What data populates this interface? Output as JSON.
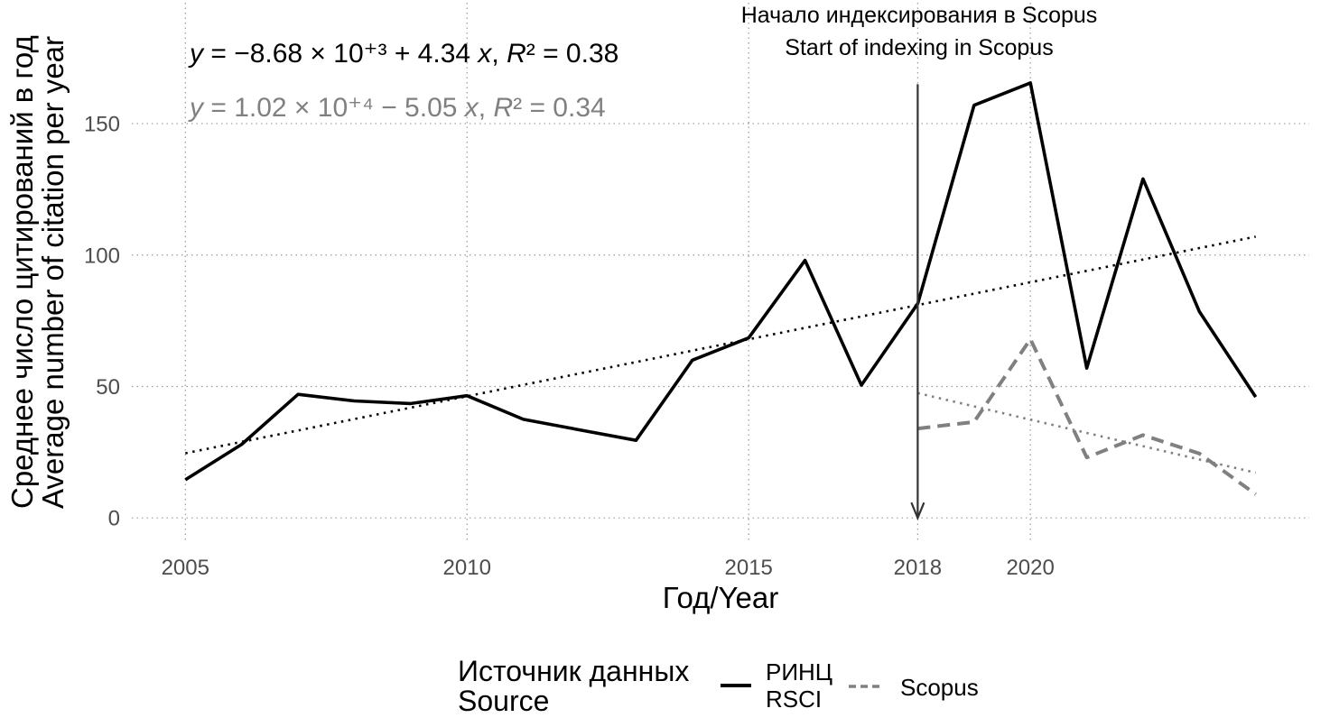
{
  "chart_data": {
    "type": "line",
    "xlabel": "Год/Year",
    "ylabel": "Среднее число цитирований в год\nAverage number of citation per year",
    "xlim": [
      2004.05,
      2024.95
    ],
    "ylim": [
      -9.2,
      196
    ],
    "x_ticks": [
      2005,
      2010,
      2015,
      2018,
      2020
    ],
    "y_ticks": [
      0,
      50,
      100,
      150
    ],
    "grid": true,
    "legend": {
      "title": "Источник данных\nSource",
      "position": "bottom"
    },
    "series": [
      {
        "name": "РИНЦ\nRSCI",
        "color": "#000000",
        "dashed": false,
        "x": [
          2005,
          2006,
          2007,
          2008,
          2009,
          2010,
          2011,
          2012,
          2013,
          2014,
          2015,
          2016,
          2017,
          2018,
          2019,
          2020,
          2021,
          2022,
          2023,
          2024
        ],
        "y": [
          14.5,
          28,
          47,
          44.5,
          43.5,
          46.5,
          37.5,
          33.5,
          29.5,
          60,
          68.5,
          98,
          50.5,
          81.5,
          157,
          165.5,
          57,
          129,
          78.5,
          46
        ],
        "trend": {
          "x": [
            2005,
            2024
          ],
          "y": [
            24.6,
            107.0
          ],
          "equation": "y = −8.68 × 10⁺³ + 4.34 x, R² = 0.38"
        }
      },
      {
        "name": "Scopus",
        "color": "#808080",
        "dashed": true,
        "x": [
          2018,
          2019,
          2020,
          2021,
          2022,
          2023,
          2024
        ],
        "y": [
          34,
          36.5,
          68,
          23,
          31.5,
          24.5,
          9
        ],
        "trend": {
          "x": [
            2018,
            2024
          ],
          "y": [
            47.5,
            17.2
          ],
          "equation": "y = 1.02 × 10⁺⁴ − 5.05 x, R² = 0.34"
        }
      }
    ],
    "indexing_start": {
      "x": 2018,
      "y_from": 165,
      "y_to": 0,
      "color": "#333333",
      "label": [
        "Начало индексирования в Scopus",
        "Start of indexing in Scopus"
      ]
    }
  }
}
